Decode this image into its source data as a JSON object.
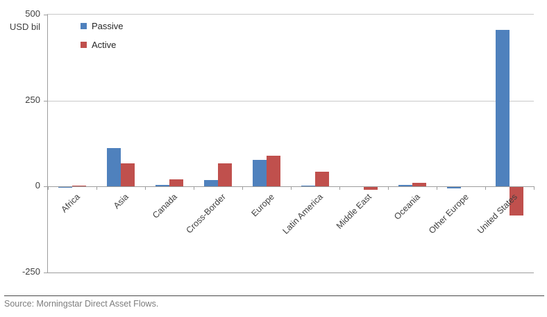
{
  "chart_data": {
    "type": "bar",
    "title": "",
    "unit_label": "USD bil",
    "categories": [
      "Africa",
      "Asia",
      "Canada",
      "Cross-Border",
      "Europe",
      "Latin America",
      "Middle East",
      "Oceania",
      "Other Europe",
      "United States"
    ],
    "series": [
      {
        "name": "Passive",
        "color": "#4f81bd",
        "values": [
          -2,
          112,
          5,
          19,
          77,
          3,
          0,
          5,
          -3,
          455
        ]
      },
      {
        "name": "Active",
        "color": "#c0504d",
        "values": [
          2,
          68,
          20,
          68,
          90,
          43,
          -8,
          10,
          0,
          -82
        ]
      }
    ],
    "ylim": [
      -250,
      500
    ],
    "yticks": [
      500,
      250,
      0,
      -250
    ],
    "grid": "horizontal",
    "legend_position": "top-left-inside",
    "xlabel": "",
    "ylabel": "USD bil"
  },
  "footer": {
    "source": "Source: Morningstar Direct Asset Flows."
  },
  "colors": {
    "passive": "#4f81bd",
    "active": "#c0504d",
    "gridline": "#c9c9c9",
    "axis": "#9d9d9d",
    "text": "#3f3f3f",
    "source_text": "#7d7d7d",
    "background": "#ffffff"
  }
}
